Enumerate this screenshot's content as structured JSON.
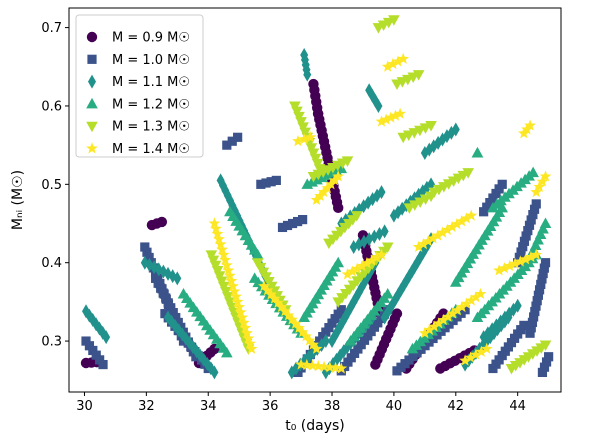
{
  "chart_data": {
    "type": "scatter",
    "xlabel": "t₀ (days)",
    "ylabel": "Mₙᵢ (M☉)",
    "xlim": [
      29.5,
      45.4
    ],
    "ylim": [
      0.235,
      0.725
    ],
    "xticks": [
      30,
      32,
      34,
      36,
      38,
      40,
      42,
      44
    ],
    "yticks": [
      0.3,
      0.4,
      0.5,
      0.6,
      0.7
    ],
    "xtick_labels": [
      "30",
      "32",
      "34",
      "36",
      "38",
      "40",
      "42",
      "44"
    ],
    "ytick_labels": [
      "0.3",
      "0.4",
      "0.5",
      "0.6",
      "0.7"
    ],
    "legend_position": "upper-left",
    "series": [
      {
        "name": "M = 0.9 M☉",
        "mass": "0.9",
        "marker": "circle",
        "color": "#440154",
        "tracks": [
          {
            "x0": 30.05,
            "x1": 30.4,
            "y0": 0.272,
            "y1": 0.273
          },
          {
            "x0": 32.18,
            "x1": 32.5,
            "y0": 0.448,
            "y1": 0.452
          },
          {
            "x0": 33.7,
            "x1": 34.2,
            "y0": 0.272,
            "y1": 0.29
          },
          {
            "x0": 37.4,
            "x1": 37.55,
            "y0": 0.628,
            "y1": 0.59
          },
          {
            "x0": 37.55,
            "x1": 38.2,
            "y0": 0.59,
            "y1": 0.47
          },
          {
            "x0": 39.0,
            "x1": 39.55,
            "y0": 0.435,
            "y1": 0.335
          },
          {
            "x0": 39.4,
            "x1": 40.1,
            "y0": 0.27,
            "y1": 0.335
          },
          {
            "x0": 40.4,
            "x1": 41.6,
            "y0": 0.265,
            "y1": 0.335
          },
          {
            "x0": 41.5,
            "x1": 42.6,
            "y0": 0.265,
            "y1": 0.288
          }
        ]
      },
      {
        "name": "M = 1.0 M☉",
        "mass": "1.0",
        "marker": "square",
        "color": "#3b528b",
        "tracks": [
          {
            "x0": 30.05,
            "x1": 30.6,
            "y0": 0.3,
            "y1": 0.27
          },
          {
            "x0": 31.95,
            "x1": 33.2,
            "y0": 0.42,
            "y1": 0.3
          },
          {
            "x0": 32.3,
            "x1": 33.6,
            "y0": 0.38,
            "y1": 0.28
          },
          {
            "x0": 32.6,
            "x1": 34.0,
            "y0": 0.335,
            "y1": 0.265
          },
          {
            "x0": 34.6,
            "x1": 34.95,
            "y0": 0.55,
            "y1": 0.56
          },
          {
            "x0": 35.7,
            "x1": 36.2,
            "y0": 0.5,
            "y1": 0.505
          },
          {
            "x0": 36.4,
            "x1": 37.05,
            "y0": 0.445,
            "y1": 0.455
          },
          {
            "x0": 36.9,
            "x1": 38.3,
            "y0": 0.26,
            "y1": 0.34
          },
          {
            "x0": 38.3,
            "x1": 39.8,
            "y0": 0.262,
            "y1": 0.34
          },
          {
            "x0": 40.1,
            "x1": 42.3,
            "y0": 0.262,
            "y1": 0.34
          },
          {
            "x0": 43.2,
            "x1": 44.2,
            "y0": 0.265,
            "y1": 0.32
          },
          {
            "x0": 42.9,
            "x1": 43.5,
            "y0": 0.465,
            "y1": 0.5
          },
          {
            "x0": 44.0,
            "x1": 44.6,
            "y0": 0.4,
            "y1": 0.475
          },
          {
            "x0": 44.4,
            "x1": 44.9,
            "y0": 0.31,
            "y1": 0.4
          },
          {
            "x0": 44.8,
            "x1": 45.0,
            "y0": 0.26,
            "y1": 0.28
          }
        ]
      },
      {
        "name": "M = 1.1 M☉",
        "mass": "1.1",
        "marker": "diamond",
        "color": "#21918c",
        "tracks": [
          {
            "x0": 30.05,
            "x1": 30.7,
            "y0": 0.338,
            "y1": 0.305
          },
          {
            "x0": 31.95,
            "x1": 33.0,
            "y0": 0.4,
            "y1": 0.38
          },
          {
            "x0": 32.7,
            "x1": 34.2,
            "y0": 0.33,
            "y1": 0.26
          },
          {
            "x0": 34.4,
            "x1": 36.0,
            "y0": 0.505,
            "y1": 0.37
          },
          {
            "x0": 36.7,
            "x1": 37.8,
            "y0": 0.26,
            "y1": 0.3
          },
          {
            "x0": 37.1,
            "x1": 37.2,
            "y0": 0.665,
            "y1": 0.64
          },
          {
            "x0": 37.8,
            "x1": 39.3,
            "y0": 0.26,
            "y1": 0.33
          },
          {
            "x0": 38.0,
            "x1": 39.4,
            "y0": 0.3,
            "y1": 0.4
          },
          {
            "x0": 38.3,
            "x1": 39.6,
            "y0": 0.45,
            "y1": 0.49
          },
          {
            "x0": 38.7,
            "x1": 39.7,
            "y0": 0.42,
            "y1": 0.44
          },
          {
            "x0": 39.2,
            "x1": 39.5,
            "y0": 0.62,
            "y1": 0.6
          },
          {
            "x0": 39.7,
            "x1": 41.2,
            "y0": 0.33,
            "y1": 0.43
          },
          {
            "x0": 40.0,
            "x1": 41.2,
            "y0": 0.46,
            "y1": 0.5
          },
          {
            "x0": 41.0,
            "x1": 42.0,
            "y0": 0.54,
            "y1": 0.57
          },
          {
            "x0": 42.3,
            "x1": 43.7,
            "y0": 0.27,
            "y1": 0.33
          },
          {
            "x0": 42.9,
            "x1": 44.0,
            "y0": 0.305,
            "y1": 0.345
          }
        ]
      },
      {
        "name": "M = 1.2 M☉",
        "mass": "1.2",
        "marker": "triangle-up",
        "color": "#27ad81",
        "tracks": [
          {
            "x0": 33.2,
            "x1": 34.6,
            "y0": 0.36,
            "y1": 0.285
          },
          {
            "x0": 34.7,
            "x1": 35.6,
            "y0": 0.465,
            "y1": 0.41
          },
          {
            "x0": 35.5,
            "x1": 37.0,
            "y0": 0.38,
            "y1": 0.31
          },
          {
            "x0": 37.1,
            "x1": 38.2,
            "y0": 0.33,
            "y1": 0.4
          },
          {
            "x0": 37.2,
            "x1": 38.3,
            "y0": 0.5,
            "y1": 0.52
          },
          {
            "x0": 38.6,
            "x1": 39.8,
            "y0": 0.3,
            "y1": 0.36
          },
          {
            "x0": 40.6,
            "x1": 42.0,
            "y0": 0.29,
            "y1": 0.34
          },
          {
            "x0": 42.0,
            "x1": 43.5,
            "y0": 0.375,
            "y1": 0.47
          },
          {
            "x0": 42.7,
            "x1": 44.6,
            "y0": 0.33,
            "y1": 0.41
          },
          {
            "x0": 43.2,
            "x1": 44.5,
            "y0": 0.47,
            "y1": 0.515
          },
          {
            "x0": 44.5,
            "x1": 44.9,
            "y0": 0.415,
            "y1": 0.45
          },
          {
            "x0": 42.7,
            "x1": 42.7,
            "y0": 0.54,
            "y1": 0.54
          }
        ]
      },
      {
        "name": "M = 1.3 M☉",
        "mass": "1.3",
        "marker": "triangle-down",
        "color": "#b5de2b",
        "tracks": [
          {
            "x0": 34.1,
            "x1": 35.3,
            "y0": 0.41,
            "y1": 0.29
          },
          {
            "x0": 35.6,
            "x1": 36.5,
            "y0": 0.4,
            "y1": 0.34
          },
          {
            "x0": 36.8,
            "x1": 37.6,
            "y0": 0.6,
            "y1": 0.52
          },
          {
            "x0": 37.4,
            "x1": 38.5,
            "y0": 0.51,
            "y1": 0.53
          },
          {
            "x0": 37.9,
            "x1": 38.8,
            "y0": 0.425,
            "y1": 0.46
          },
          {
            "x0": 38.2,
            "x1": 39.8,
            "y0": 0.35,
            "y1": 0.42
          },
          {
            "x0": 39.5,
            "x1": 40.0,
            "y0": 0.7,
            "y1": 0.71
          },
          {
            "x0": 40.1,
            "x1": 40.8,
            "y0": 0.628,
            "y1": 0.64
          },
          {
            "x0": 40.3,
            "x1": 41.2,
            "y0": 0.56,
            "y1": 0.575
          },
          {
            "x0": 40.5,
            "x1": 41.2,
            "y0": 0.47,
            "y1": 0.485
          },
          {
            "x0": 41.3,
            "x1": 42.4,
            "y0": 0.49,
            "y1": 0.515
          },
          {
            "x0": 43.8,
            "x1": 44.9,
            "y0": 0.265,
            "y1": 0.295
          }
        ]
      },
      {
        "name": "M = 1.4 M☉",
        "mass": "1.4",
        "marker": "star",
        "color": "#fde725",
        "tracks": [
          {
            "x0": 34.2,
            "x1": 35.4,
            "y0": 0.45,
            "y1": 0.29
          },
          {
            "x0": 35.8,
            "x1": 37.5,
            "y0": 0.37,
            "y1": 0.29
          },
          {
            "x0": 37.0,
            "x1": 38.3,
            "y0": 0.27,
            "y1": 0.265
          },
          {
            "x0": 36.9,
            "x1": 37.3,
            "y0": 0.555,
            "y1": 0.56
          },
          {
            "x0": 37.5,
            "x1": 38.2,
            "y0": 0.48,
            "y1": 0.51
          },
          {
            "x0": 38.5,
            "x1": 39.6,
            "y0": 0.385,
            "y1": 0.41
          },
          {
            "x0": 39.6,
            "x1": 40.2,
            "y0": 0.58,
            "y1": 0.59
          },
          {
            "x0": 39.8,
            "x1": 40.3,
            "y0": 0.65,
            "y1": 0.66
          },
          {
            "x0": 40.8,
            "x1": 42.5,
            "y0": 0.42,
            "y1": 0.46
          },
          {
            "x0": 41.0,
            "x1": 42.8,
            "y0": 0.31,
            "y1": 0.36
          },
          {
            "x0": 42.3,
            "x1": 43.0,
            "y0": 0.275,
            "y1": 0.29
          },
          {
            "x0": 43.4,
            "x1": 44.6,
            "y0": 0.39,
            "y1": 0.41
          },
          {
            "x0": 44.2,
            "x1": 44.4,
            "y0": 0.565,
            "y1": 0.575
          },
          {
            "x0": 44.6,
            "x1": 44.9,
            "y0": 0.49,
            "y1": 0.51
          }
        ]
      }
    ]
  }
}
